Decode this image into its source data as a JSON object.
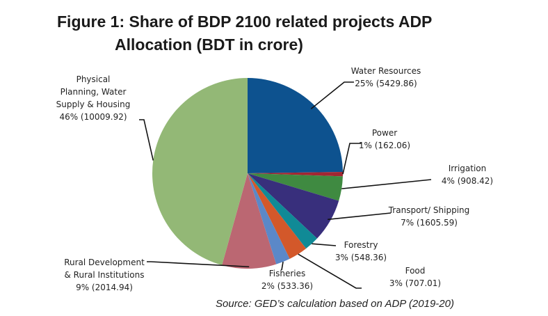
{
  "chart_data": {
    "type": "pie",
    "title_line1": "Figure 1: Share of BDP 2100 related projects ADP",
    "title_line2": "Allocation (BDT in crore)",
    "unit": "BDT in crore",
    "start_angle_deg": 0,
    "direction": "clockwise",
    "slices": [
      {
        "name": "Water Resources",
        "label_lines": [
          "Water Resources",
          "25% (5429.86)"
        ],
        "percent": 25,
        "value": 5429.86,
        "color": "#0d528f"
      },
      {
        "name": "Power",
        "label_lines": [
          "Power",
          "1% (162.06)"
        ],
        "percent": 1,
        "value": 162.06,
        "color": "#a32632"
      },
      {
        "name": "Irrigation",
        "label_lines": [
          "Irrigation",
          "4% (908.42)"
        ],
        "percent": 4,
        "value": 908.42,
        "color": "#3f8a41"
      },
      {
        "name": "Transport/ Shipping",
        "label_lines": [
          "Transport/ Shipping",
          "7% (1605.59)"
        ],
        "percent": 7,
        "value": 1605.59,
        "color": "#382f7c"
      },
      {
        "name": "Forestry",
        "label_lines": [
          "Forestry",
          "3% (548.36)"
        ],
        "percent": 3,
        "value": 548.36,
        "color": "#108a96"
      },
      {
        "name": "Food",
        "label_lines": [
          "Food",
          "3% (707.01)"
        ],
        "percent": 3,
        "value": 707.01,
        "color": "#d3582a"
      },
      {
        "name": "Fisheries",
        "label_lines": [
          "Fisheries",
          "2% (533.36)"
        ],
        "percent": 2,
        "value": 533.36,
        "color": "#5b88c8"
      },
      {
        "name": "Rural Development & Rural Institutions",
        "label_lines": [
          "Rural Development",
          "& Rural Institutions",
          "9% (2014.94)"
        ],
        "percent": 9,
        "value": 2014.94,
        "color": "#bb6772"
      },
      {
        "name": "Physical Planning, Water Supply & Housing",
        "label_lines": [
          "Physical",
          "Planning, Water",
          "Supply & Housing",
          "46% (10009.92)"
        ],
        "percent": 46,
        "value": 10009.92,
        "color": "#93b876"
      }
    ],
    "source": "Source: GED’s calculation based on ADP (2019-20)"
  }
}
